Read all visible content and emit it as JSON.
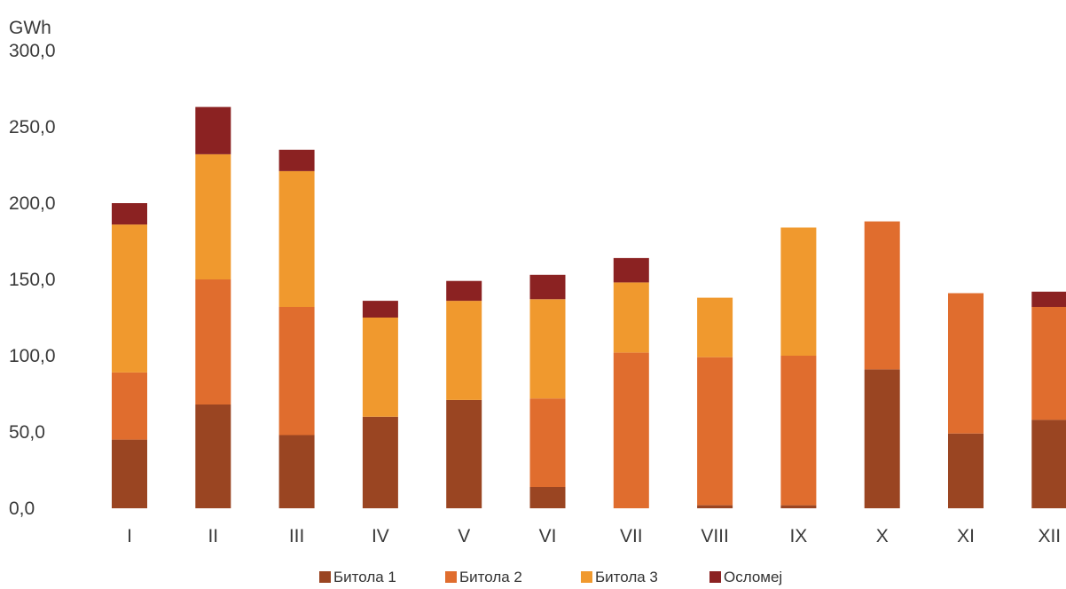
{
  "chart_data": {
    "type": "bar",
    "stacked": true,
    "unit_label": "GWh",
    "title": "",
    "xlabel": "",
    "ylabel": "GWh",
    "categories": [
      "I",
      "II",
      "III",
      "IV",
      "V",
      "VI",
      "VII",
      "VIII",
      "IX",
      "X",
      "XI",
      "XII"
    ],
    "ylim": [
      0,
      300
    ],
    "yticks": [
      0,
      50,
      100,
      150,
      200,
      250,
      300
    ],
    "ytick_labels": [
      "0,0",
      "50,0",
      "100,0",
      "150,0",
      "200,0",
      "250,0",
      "300,0"
    ],
    "grid": false,
    "legend_position": "bottom",
    "series": [
      {
        "name": "Битола 1",
        "color": "#9a4522",
        "values": [
          45,
          68,
          48,
          60,
          71,
          14,
          0,
          2,
          2,
          91,
          49,
          58
        ]
      },
      {
        "name": "Битола 2",
        "color": "#e06d2e",
        "values": [
          44,
          82,
          84,
          0,
          0,
          58,
          102,
          97,
          98,
          97,
          92,
          74
        ]
      },
      {
        "name": "Битола 3",
        "color": "#f0992e",
        "values": [
          97,
          82,
          89,
          65,
          65,
          65,
          46,
          39,
          84,
          0,
          0,
          0
        ]
      },
      {
        "name": "Осломеј",
        "color": "#8b2222",
        "values": [
          14,
          31,
          14,
          11,
          13,
          16,
          16,
          0,
          0,
          0,
          0,
          10
        ]
      }
    ]
  }
}
